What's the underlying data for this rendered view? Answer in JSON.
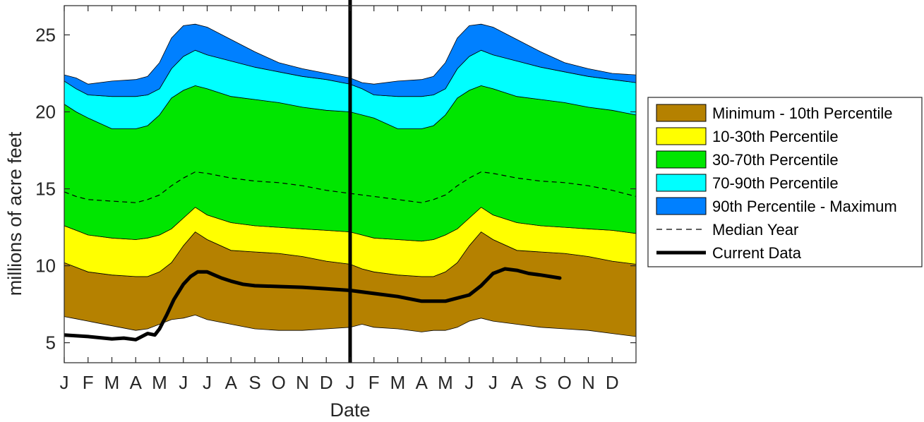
{
  "chart_data": {
    "type": "area",
    "title": "",
    "xlabel": "Date",
    "ylabel": "millions of acre feet",
    "ylim": [
      3.7,
      26.9
    ],
    "xlim": [
      0,
      24
    ],
    "x_tick_labels": [
      "J",
      "F",
      "M",
      "A",
      "M",
      "J",
      "J",
      "A",
      "S",
      "O",
      "N",
      "D",
      "J",
      "F",
      "M",
      "A",
      "M",
      "J",
      "J",
      "A",
      "S",
      "O",
      "N",
      "D"
    ],
    "y_ticks": [
      5,
      10,
      15,
      20,
      25
    ],
    "grid": false,
    "legend_position": "right",
    "x_month_index": [
      0,
      0.5,
      1,
      2,
      3,
      3.5,
      4,
      4.5,
      5,
      5.5,
      6,
      7,
      8,
      9,
      10,
      11,
      12,
      12.5,
      13,
      14,
      15,
      15.5,
      16,
      16.5,
      17,
      17.5,
      18,
      19,
      20,
      21,
      22,
      23,
      24
    ],
    "bands": [
      {
        "name": "Minimum - 10th Percentile",
        "color": "#b58100",
        "lower": [
          6.7,
          6.55,
          6.4,
          6.1,
          5.8,
          5.9,
          6.2,
          6.5,
          6.6,
          6.8,
          6.5,
          6.2,
          5.9,
          5.8,
          5.8,
          5.9,
          6.0,
          6.2,
          6.0,
          5.9,
          5.7,
          5.8,
          5.8,
          6.0,
          6.4,
          6.6,
          6.4,
          6.2,
          6.0,
          5.9,
          5.8,
          5.6,
          5.4
        ],
        "upper": [
          10.2,
          9.9,
          9.6,
          9.4,
          9.3,
          9.3,
          9.6,
          10.2,
          11.3,
          12.2,
          11.7,
          11.0,
          10.9,
          10.8,
          10.6,
          10.3,
          10.1,
          9.8,
          9.6,
          9.4,
          9.3,
          9.3,
          9.6,
          10.2,
          11.3,
          12.2,
          11.7,
          11.0,
          10.9,
          10.8,
          10.6,
          10.3,
          10.1
        ]
      },
      {
        "name": "10-30th Percentile",
        "color": "#ffff00",
        "lower": [
          10.2,
          9.9,
          9.6,
          9.4,
          9.3,
          9.3,
          9.6,
          10.2,
          11.3,
          12.2,
          11.7,
          11.0,
          10.9,
          10.8,
          10.6,
          10.3,
          10.1,
          9.8,
          9.6,
          9.4,
          9.3,
          9.3,
          9.6,
          10.2,
          11.3,
          12.2,
          11.7,
          11.0,
          10.9,
          10.8,
          10.6,
          10.3,
          10.1
        ],
        "upper": [
          12.6,
          12.3,
          12.0,
          11.8,
          11.7,
          11.8,
          12.0,
          12.4,
          13.1,
          13.8,
          13.3,
          12.8,
          12.6,
          12.5,
          12.4,
          12.3,
          12.2,
          12.0,
          11.8,
          11.7,
          11.6,
          11.7,
          12.0,
          12.4,
          13.1,
          13.8,
          13.3,
          12.8,
          12.6,
          12.5,
          12.4,
          12.3,
          12.1
        ]
      },
      {
        "name": "30-70th Percentile",
        "color": "#00e600",
        "lower": [
          12.6,
          12.3,
          12.0,
          11.8,
          11.7,
          11.8,
          12.0,
          12.4,
          13.1,
          13.8,
          13.3,
          12.8,
          12.6,
          12.5,
          12.4,
          12.3,
          12.2,
          12.0,
          11.8,
          11.7,
          11.6,
          11.7,
          12.0,
          12.4,
          13.1,
          13.8,
          13.3,
          12.8,
          12.6,
          12.5,
          12.4,
          12.3,
          12.1
        ],
        "upper": [
          20.5,
          20.0,
          19.6,
          18.9,
          18.9,
          19.1,
          19.8,
          20.9,
          21.4,
          21.7,
          21.5,
          21.0,
          20.8,
          20.6,
          20.3,
          20.1,
          20.0,
          19.8,
          19.6,
          18.9,
          18.9,
          19.1,
          19.8,
          20.9,
          21.4,
          21.7,
          21.5,
          21.0,
          20.8,
          20.6,
          20.3,
          20.1,
          19.8
        ]
      },
      {
        "name": "70-90th Percentile",
        "color": "#00ffff",
        "lower": [
          20.5,
          20.0,
          19.6,
          18.9,
          18.9,
          19.1,
          19.8,
          20.9,
          21.4,
          21.7,
          21.5,
          21.0,
          20.8,
          20.6,
          20.3,
          20.1,
          20.0,
          19.8,
          19.6,
          18.9,
          18.9,
          19.1,
          19.8,
          20.9,
          21.4,
          21.7,
          21.5,
          21.0,
          20.8,
          20.6,
          20.3,
          20.1,
          19.8
        ],
        "upper": [
          22.0,
          21.5,
          21.1,
          21.0,
          21.0,
          21.1,
          21.5,
          22.8,
          23.6,
          24.0,
          23.7,
          23.3,
          22.9,
          22.6,
          22.3,
          22.1,
          21.8,
          21.5,
          21.1,
          21.0,
          21.0,
          21.1,
          21.5,
          22.8,
          23.6,
          24.0,
          23.7,
          23.3,
          22.9,
          22.6,
          22.3,
          22.1,
          21.9
        ]
      },
      {
        "name": "90th Percentile - Maximum",
        "color": "#0080ff",
        "lower": [
          22.0,
          21.5,
          21.1,
          21.0,
          21.0,
          21.1,
          21.5,
          22.8,
          23.6,
          24.0,
          23.7,
          23.3,
          22.9,
          22.6,
          22.3,
          22.1,
          21.8,
          21.5,
          21.1,
          21.0,
          21.0,
          21.1,
          21.5,
          22.8,
          23.6,
          24.0,
          23.7,
          23.3,
          22.9,
          22.6,
          22.3,
          22.1,
          21.9
        ],
        "upper": [
          22.4,
          22.2,
          21.8,
          22.0,
          22.1,
          22.3,
          23.2,
          24.8,
          25.6,
          25.7,
          25.5,
          24.7,
          23.9,
          23.2,
          22.8,
          22.5,
          22.2,
          21.9,
          21.8,
          22.0,
          22.1,
          22.3,
          23.2,
          24.8,
          25.6,
          25.7,
          25.5,
          24.7,
          23.9,
          23.2,
          22.8,
          22.5,
          22.4
        ]
      }
    ],
    "median": {
      "name": "Median Year",
      "values": [
        14.8,
        14.5,
        14.3,
        14.2,
        14.1,
        14.3,
        14.6,
        15.2,
        15.7,
        16.1,
        16.0,
        15.7,
        15.5,
        15.4,
        15.2,
        14.9,
        14.7,
        14.6,
        14.5,
        14.3,
        14.1,
        14.3,
        14.6,
        15.2,
        15.7,
        16.1,
        16.0,
        15.7,
        15.5,
        15.4,
        15.2,
        14.9,
        14.5
      ]
    },
    "current": {
      "name": "Current Data",
      "x": [
        0,
        1,
        2,
        2.5,
        3,
        3.5,
        3.8,
        4.0,
        4.3,
        4.6,
        5.0,
        5.3,
        5.6,
        6.0,
        6.3,
        6.6,
        7.0,
        7.5,
        8,
        9,
        10,
        11,
        12,
        13,
        14,
        15,
        16,
        17,
        17.5,
        18,
        18.5,
        19,
        19.5,
        20,
        20.8
      ],
      "values": [
        5.5,
        5.4,
        5.25,
        5.3,
        5.2,
        5.6,
        5.5,
        5.9,
        6.8,
        7.8,
        8.8,
        9.3,
        9.6,
        9.6,
        9.4,
        9.2,
        9.0,
        8.8,
        8.7,
        8.65,
        8.6,
        8.5,
        8.4,
        8.2,
        8.0,
        7.7,
        7.7,
        8.1,
        8.7,
        9.5,
        9.8,
        9.7,
        9.5,
        9.4,
        9.2
      ]
    },
    "vertical_line_x": 12
  }
}
